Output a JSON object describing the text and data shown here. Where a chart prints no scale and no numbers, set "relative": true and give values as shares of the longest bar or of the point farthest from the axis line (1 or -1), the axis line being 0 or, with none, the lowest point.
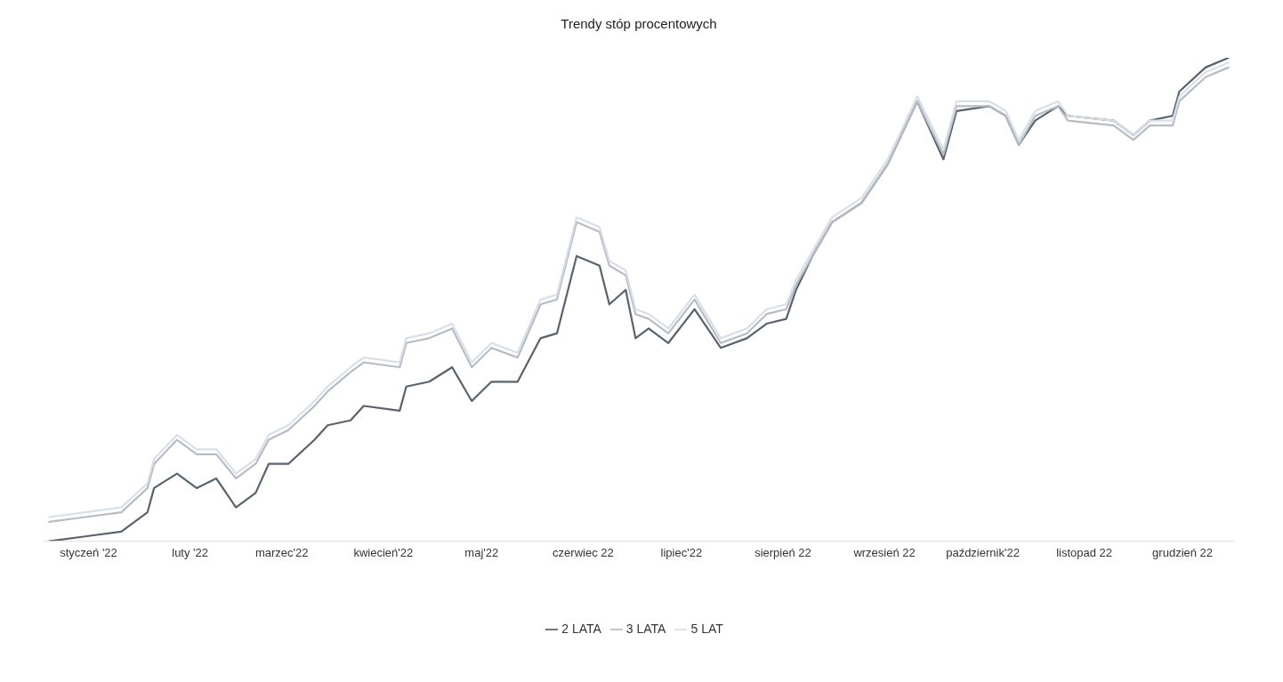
{
  "chart_data": {
    "type": "line",
    "title": "Trendy stóp procentowych",
    "relative": true,
    "legend": "bottom",
    "marker": "none",
    "line_style": "solid",
    "x": [
      "2022-01-03",
      "2022-01-14",
      "2022-01-25",
      "2022-02-02",
      "2022-02-04",
      "2022-02-11",
      "2022-02-17",
      "2022-02-23",
      "2022-03-01",
      "2022-03-07",
      "2022-03-11",
      "2022-03-17",
      "2022-03-25",
      "2022-03-29",
      "2022-04-05",
      "2022-04-09",
      "2022-04-20",
      "2022-04-22",
      "2022-04-29",
      "2022-05-06",
      "2022-05-12",
      "2022-05-18",
      "2022-05-26",
      "2022-06-02",
      "2022-06-07",
      "2022-06-13",
      "2022-06-20",
      "2022-06-23",
      "2022-06-28",
      "2022-07-01",
      "2022-07-05",
      "2022-07-11",
      "2022-07-19",
      "2022-07-27",
      "2022-08-04",
      "2022-08-10",
      "2022-08-16",
      "2022-08-19",
      "2022-08-24",
      "2022-08-30",
      "2022-09-08",
      "2022-09-16",
      "2022-09-25",
      "2022-10-03",
      "2022-10-07",
      "2022-10-17",
      "2022-10-22",
      "2022-10-26",
      "2022-10-31",
      "2022-11-07",
      "2022-11-10",
      "2022-11-24",
      "2022-11-30",
      "2022-12-05",
      "2022-12-12",
      "2022-12-14",
      "2022-12-22",
      "2022-12-29"
    ],
    "xlim": [
      "2022-01-01",
      "2022-12-31"
    ],
    "xticks": [
      {
        "value": "2022-01-15",
        "label": "styczeń '22"
      },
      {
        "value": "2022-02-15",
        "label": "luty '22"
      },
      {
        "value": "2022-03-15",
        "label": "marzec'22"
      },
      {
        "value": "2022-04-15",
        "label": "kwiecień'22"
      },
      {
        "value": "2022-05-15",
        "label": "maj'22"
      },
      {
        "value": "2022-06-15",
        "label": "czerwiec 22"
      },
      {
        "value": "2022-07-15",
        "label": "lipiec'22"
      },
      {
        "value": "2022-08-15",
        "label": "sierpień 22"
      },
      {
        "value": "2022-09-15",
        "label": "wrzesień 22"
      },
      {
        "value": "2022-10-15",
        "label": "październik'22"
      },
      {
        "value": "2022-11-15",
        "label": "listopad 22"
      },
      {
        "value": "2022-12-15",
        "label": "grudzień 22"
      }
    ],
    "series": [
      {
        "name": "2 LATA",
        "color": "#59636e",
        "values": [
          0,
          0.01,
          0.02,
          0.06,
          0.11,
          0.14,
          0.11,
          0.13,
          0.07,
          0.1,
          0.16,
          0.16,
          0.21,
          0.24,
          0.25,
          0.28,
          0.27,
          0.32,
          0.33,
          0.36,
          0.29,
          0.33,
          0.33,
          0.42,
          0.43,
          0.59,
          0.57,
          0.49,
          0.52,
          0.42,
          0.44,
          0.41,
          0.48,
          0.4,
          0.42,
          0.45,
          0.46,
          0.52,
          0.59,
          0.66,
          0.7,
          0.78,
          0.91,
          0.79,
          0.89,
          0.9,
          0.88,
          0.82,
          0.87,
          0.9,
          0.88,
          0.87,
          0.84,
          0.87,
          0.88,
          0.93,
          0.98,
          1
        ]
      },
      {
        "name": "3 LATA",
        "color": "#b8bcc2",
        "values": [
          0.04,
          0.05,
          0.06,
          0.11,
          0.16,
          0.21,
          0.18,
          0.18,
          0.13,
          0.16,
          0.21,
          0.23,
          0.28,
          0.31,
          0.35,
          0.37,
          0.36,
          0.41,
          0.42,
          0.44,
          0.36,
          0.4,
          0.38,
          0.49,
          0.5,
          0.66,
          0.64,
          0.57,
          0.55,
          0.47,
          0.46,
          0.43,
          0.5,
          0.41,
          0.43,
          0.47,
          0.48,
          0.53,
          0.59,
          0.66,
          0.7,
          0.78,
          0.91,
          0.8,
          0.9,
          0.9,
          0.88,
          0.82,
          0.88,
          0.9,
          0.87,
          0.86,
          0.83,
          0.86,
          0.86,
          0.91,
          0.96,
          0.98
        ]
      },
      {
        "name": "5 LAT",
        "color": "#d6dfea",
        "values": [
          0.05,
          0.06,
          0.07,
          0.12,
          0.17,
          0.22,
          0.19,
          0.19,
          0.14,
          0.17,
          0.22,
          0.24,
          0.29,
          0.32,
          0.36,
          0.38,
          0.37,
          0.42,
          0.43,
          0.45,
          0.37,
          0.41,
          0.39,
          0.5,
          0.51,
          0.67,
          0.65,
          0.58,
          0.56,
          0.48,
          0.47,
          0.44,
          0.51,
          0.42,
          0.44,
          0.48,
          0.49,
          0.54,
          0.6,
          0.67,
          0.71,
          0.79,
          0.92,
          0.81,
          0.91,
          0.91,
          0.89,
          0.83,
          0.89,
          0.91,
          0.88,
          0.87,
          0.84,
          0.87,
          0.87,
          0.92,
          0.97,
          0.99
        ]
      }
    ]
  }
}
